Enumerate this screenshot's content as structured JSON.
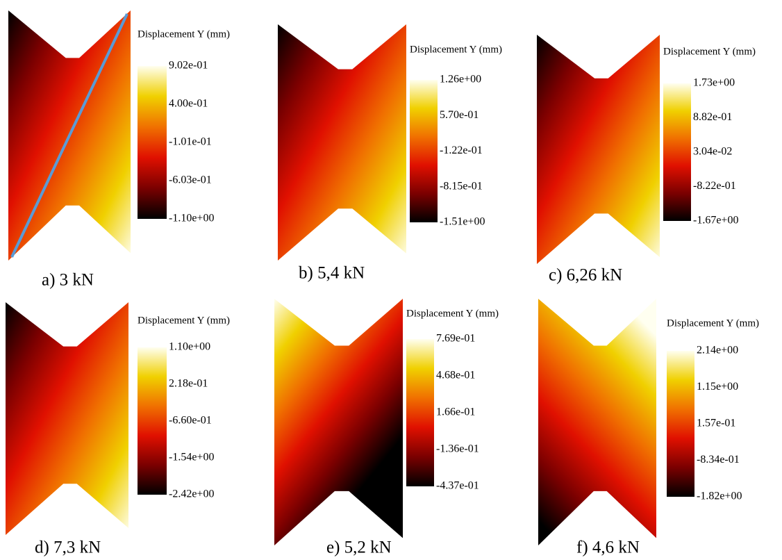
{
  "panels": [
    {
      "caption": "a) 3 kN",
      "colorbar": {
        "title": "Displacement Y (mm)",
        "ticks": [
          "9.02e-01",
          "4.00e-01",
          "-1.01e-01",
          "-6.03e-01",
          "-1.10e+00"
        ]
      }
    },
    {
      "caption": "b) 5,4 kN",
      "colorbar": {
        "title": "Displacement Y (mm)",
        "ticks": [
          "1.26e+00",
          "5.70e-01",
          "-1.22e-01",
          "-8.15e-01",
          "-1.51e+00"
        ]
      }
    },
    {
      "caption": "c) 6,26 kN",
      "colorbar": {
        "title": "Displacement Y (mm)",
        "ticks": [
          "1.73e+00",
          "8.82e-01",
          "3.04e-02",
          "-8.22e-01",
          "-1.67e+00"
        ]
      }
    },
    {
      "caption": "d) 7,3 kN",
      "colorbar": {
        "title": "Displacement Y (mm)",
        "ticks": [
          "1.10e+00",
          "2.18e-01",
          "-6.60e-01",
          "-1.54e+00",
          "-2.42e+00"
        ]
      }
    },
    {
      "caption": "e) 5,2 kN",
      "colorbar": {
        "title": "Displacement Y (mm)",
        "ticks": [
          "7.69e-01",
          "4.68e-01",
          "1.66e-01",
          "-1.36e-01",
          "-4.37e-01"
        ]
      }
    },
    {
      "caption": "f) 4,6 kN",
      "colorbar": {
        "title": "Displacement Y (mm)",
        "ticks": [
          "2.14e+00",
          "1.15e+00",
          "1.57e-01",
          "-8.34e-01",
          "-1.82e+00"
        ]
      }
    }
  ]
}
